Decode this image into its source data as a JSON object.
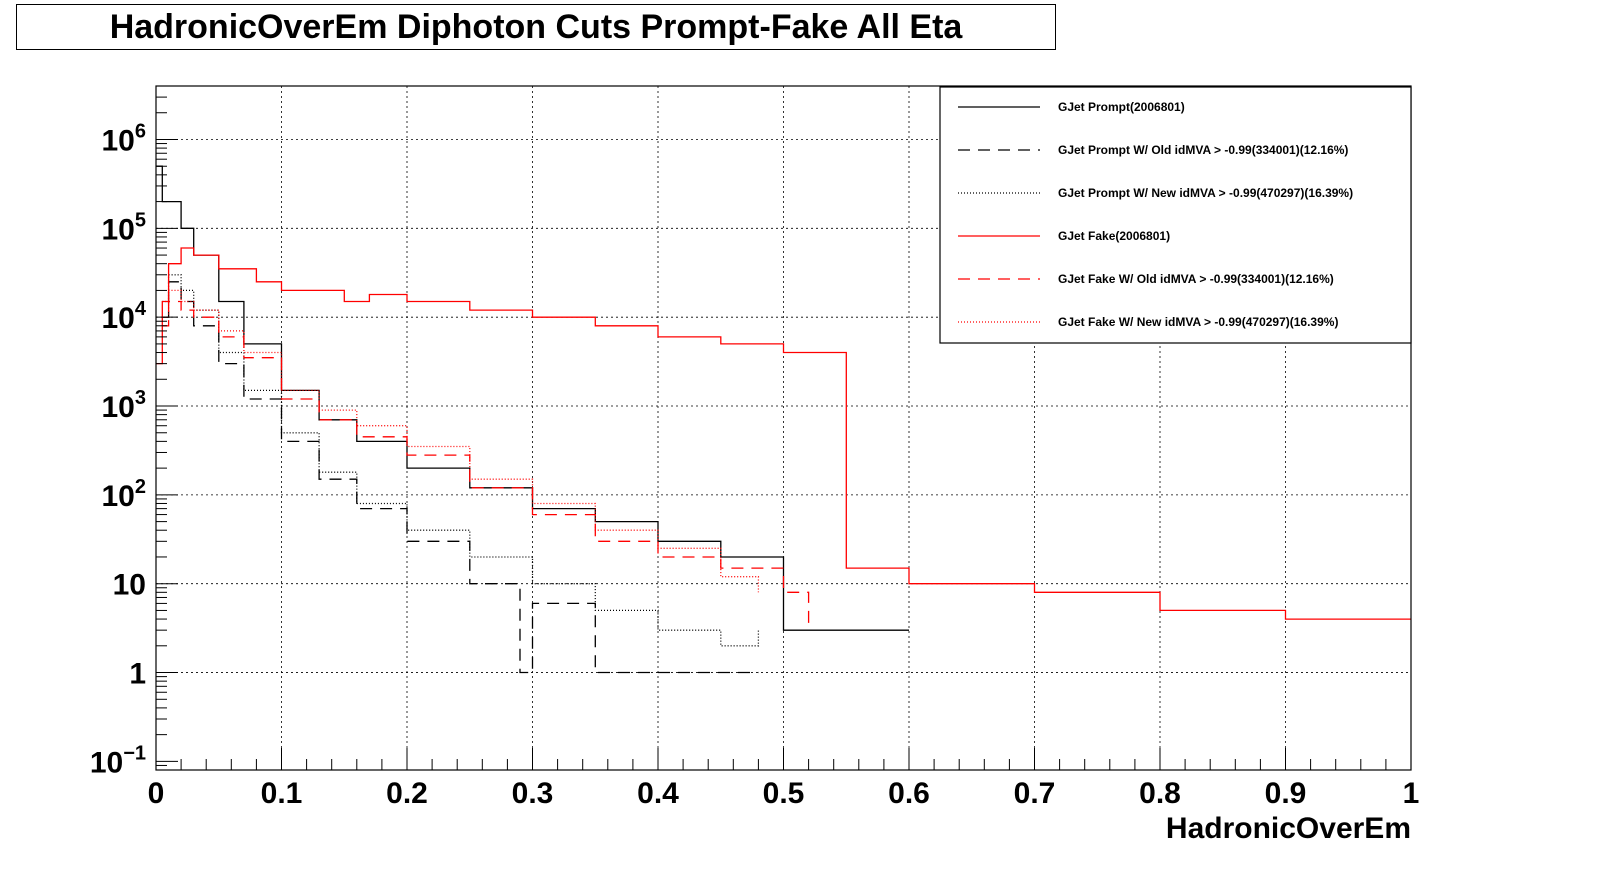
{
  "chart_data": {
    "type": "line",
    "title": "HadronicOverEm Diphoton Cuts Prompt-Fake All Eta",
    "xlabel": "HadronicOverEm",
    "ylabel": "",
    "xlim": [
      0,
      1
    ],
    "ylim": [
      0.08,
      4000000
    ],
    "yscale": "log",
    "grid": true,
    "legend_position": "top-right",
    "x_ticks": [
      "0",
      "0.1",
      "0.2",
      "0.3",
      "0.4",
      "0.5",
      "0.6",
      "0.7",
      "0.8",
      "0.9",
      "1"
    ],
    "y_ticks": [
      {
        "value": 0.1,
        "base": "10",
        "exp": "−1"
      },
      {
        "value": 1,
        "base": "1",
        "exp": ""
      },
      {
        "value": 10,
        "base": "10",
        "exp": ""
      },
      {
        "value": 100,
        "base": "10",
        "exp": "2"
      },
      {
        "value": 1000,
        "base": "10",
        "exp": "3"
      },
      {
        "value": 10000,
        "base": "10",
        "exp": "4"
      },
      {
        "value": 100000,
        "base": "10",
        "exp": "5"
      },
      {
        "value": 1000000,
        "base": "10",
        "exp": "6"
      }
    ],
    "series": [
      {
        "name": "GJet Prompt(2006801)",
        "color": "#000000",
        "dash": "none",
        "x": [
          0.0,
          0.005,
          0.01,
          0.02,
          0.03,
          0.05,
          0.07,
          0.1,
          0.13,
          0.16,
          0.2,
          0.25,
          0.3,
          0.35,
          0.4,
          0.45,
          0.5,
          0.53,
          0.6
        ],
        "y": [
          500000,
          200000,
          200000,
          100000,
          50000,
          15000,
          5000,
          1500,
          700,
          400,
          200,
          120,
          70,
          50,
          30,
          20,
          3,
          3,
          3
        ]
      },
      {
        "name": "GJet Prompt W/ Old idMVA > -0.99(334001)(12.16%)",
        "color": "#000000",
        "dash": "12,8",
        "x": [
          0.005,
          0.01,
          0.02,
          0.03,
          0.05,
          0.07,
          0.1,
          0.13,
          0.16,
          0.2,
          0.25,
          0.29,
          0.3,
          0.35,
          0.4,
          0.45,
          0.48
        ],
        "y": [
          10000,
          25000,
          15000,
          8000,
          3000,
          1200,
          400,
          150,
          70,
          30,
          10,
          1,
          6,
          1,
          1,
          1,
          1
        ]
      },
      {
        "name": "GJet Prompt W/ New idMVA > -0.99(470297)(16.39%)",
        "color": "#000000",
        "dash": "1,2",
        "x": [
          0.005,
          0.01,
          0.02,
          0.03,
          0.05,
          0.07,
          0.1,
          0.13,
          0.16,
          0.2,
          0.25,
          0.3,
          0.35,
          0.4,
          0.45,
          0.48
        ],
        "y": [
          15000,
          30000,
          20000,
          12000,
          4000,
          1500,
          500,
          180,
          80,
          40,
          20,
          10,
          5,
          3,
          2,
          3
        ]
      },
      {
        "name": "GJet Fake(2006801)",
        "color": "#ff0000",
        "dash": "none",
        "x": [
          0.0,
          0.005,
          0.01,
          0.02,
          0.03,
          0.05,
          0.08,
          0.1,
          0.15,
          0.17,
          0.2,
          0.25,
          0.3,
          0.35,
          0.4,
          0.45,
          0.5,
          0.55,
          0.6,
          0.7,
          0.8,
          0.9,
          1.0
        ],
        "y": [
          3000,
          15000,
          40000,
          60000,
          50000,
          35000,
          25000,
          20000,
          15000,
          18000,
          15000,
          12000,
          10000,
          8000,
          6000,
          5000,
          4000,
          15,
          10,
          8,
          5,
          4,
          4
        ]
      },
      {
        "name": "GJet Fake W/ Old idMVA > -0.99(334001)(12.16%)",
        "color": "#ff0000",
        "dash": "12,8",
        "x": [
          0.005,
          0.01,
          0.02,
          0.03,
          0.05,
          0.07,
          0.1,
          0.13,
          0.16,
          0.2,
          0.25,
          0.3,
          0.35,
          0.4,
          0.45,
          0.5,
          0.52
        ],
        "y": [
          8000,
          15000,
          12000,
          10000,
          6000,
          3500,
          1200,
          700,
          450,
          280,
          120,
          60,
          30,
          20,
          15,
          8,
          3
        ]
      },
      {
        "name": "GJet Fake W/ New idMVA > -0.99(470297)(16.39%)",
        "color": "#ff0000",
        "dash": "1,2",
        "x": [
          0.005,
          0.01,
          0.02,
          0.03,
          0.05,
          0.07,
          0.1,
          0.13,
          0.16,
          0.2,
          0.25,
          0.3,
          0.35,
          0.4,
          0.45,
          0.48
        ],
        "y": [
          10000,
          20000,
          15000,
          12000,
          7000,
          4000,
          1500,
          900,
          600,
          350,
          150,
          80,
          40,
          25,
          12,
          8
        ]
      }
    ]
  }
}
